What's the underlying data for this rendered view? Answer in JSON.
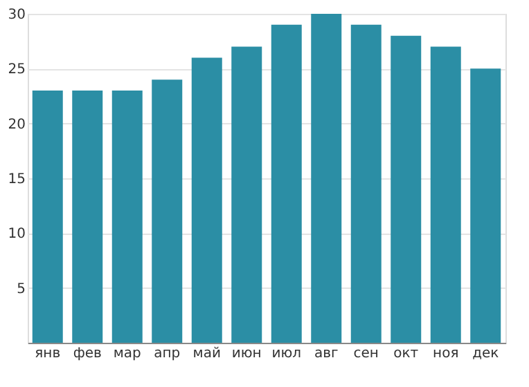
{
  "chart_data": {
    "type": "bar",
    "categories": [
      "янв",
      "фев",
      "мар",
      "апр",
      "май",
      "июн",
      "июл",
      "авг",
      "сен",
      "окт",
      "ноя",
      "дек"
    ],
    "values": [
      23,
      23,
      23,
      24,
      26,
      27,
      29,
      30,
      29,
      28,
      27,
      25
    ],
    "color": "#2b8ea5",
    "ylim": [
      0,
      30
    ],
    "yticks": [
      5,
      10,
      15,
      20,
      25,
      30
    ],
    "grid": "y"
  }
}
